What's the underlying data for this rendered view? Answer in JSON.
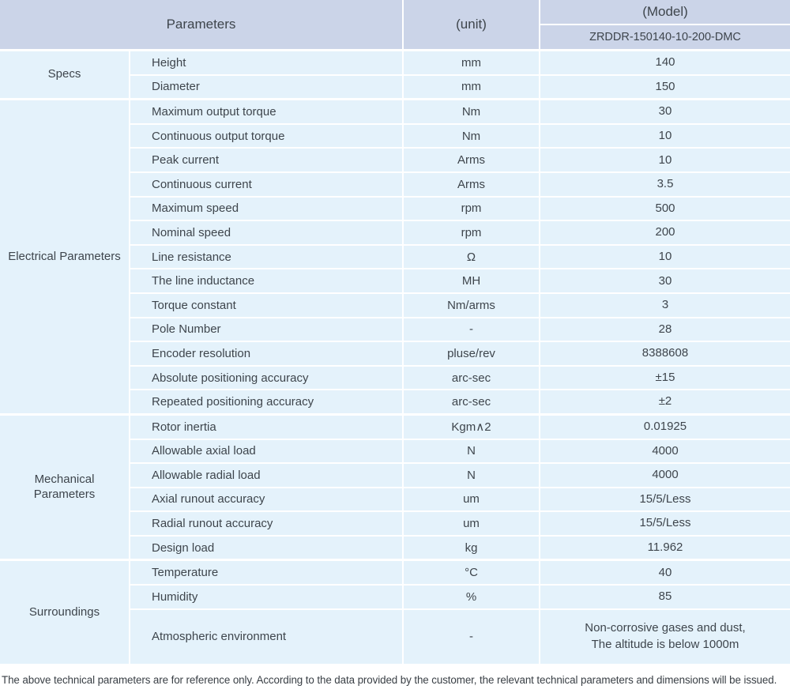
{
  "header": {
    "parameters_label": "Parameters",
    "unit_label": "(unit)",
    "model_label": "(Model)",
    "model_code": "ZRDDR-150140-10-200-DMC"
  },
  "groups": [
    {
      "label": "Specs",
      "rows": [
        {
          "parameter": "Height",
          "unit": "mm",
          "value": "140"
        },
        {
          "parameter": "Diameter",
          "unit": "mm",
          "value": "150"
        }
      ]
    },
    {
      "label": "Electrical Parameters",
      "rows": [
        {
          "parameter": "Maximum output torque",
          "unit": "Nm",
          "value": "30"
        },
        {
          "parameter": "Continuous output torque",
          "unit": "Nm",
          "value": "10"
        },
        {
          "parameter": "Peak current",
          "unit": "Arms",
          "value": "10"
        },
        {
          "parameter": "Continuous current",
          "unit": "Arms",
          "value": "3.5"
        },
        {
          "parameter": "Maximum speed",
          "unit": "rpm",
          "value": "500"
        },
        {
          "parameter": "Nominal speed",
          "unit": "rpm",
          "value": "200"
        },
        {
          "parameter": "Line resistance",
          "unit": "Ω",
          "value": "10"
        },
        {
          "parameter": "The line inductance",
          "unit": "MH",
          "value": "30"
        },
        {
          "parameter": "Torque constant",
          "unit": "Nm/arms",
          "value": "3"
        },
        {
          "parameter": "Pole Number",
          "unit": "-",
          "value": "28"
        },
        {
          "parameter": "Encoder resolution",
          "unit": "pluse/rev",
          "value": "8388608"
        },
        {
          "parameter": "Absolute positioning accuracy",
          "unit": "arc-sec",
          "value": "±15"
        },
        {
          "parameter": "Repeated positioning accuracy",
          "unit": "arc-sec",
          "value": "±2"
        }
      ]
    },
    {
      "label": "Mechanical Parameters",
      "rows": [
        {
          "parameter": "Rotor inertia",
          "unit": "Kgm∧2",
          "value": "0.01925"
        },
        {
          "parameter": "Allowable axial load",
          "unit": "N",
          "value": "4000"
        },
        {
          "parameter": "Allowable radial load",
          "unit": "N",
          "value": "4000"
        },
        {
          "parameter": "Axial runout accuracy",
          "unit": "um",
          "value": "15/5/Less"
        },
        {
          "parameter": "Radial runout accuracy",
          "unit": "um",
          "value": "15/5/Less"
        },
        {
          "parameter": "Design load",
          "unit": "kg",
          "value": "11.962"
        }
      ]
    },
    {
      "label": "Surroundings",
      "rows": [
        {
          "parameter": "Temperature",
          "unit": "°C",
          "value": "40"
        },
        {
          "parameter": "Humidity",
          "unit": "%",
          "value": "85"
        },
        {
          "parameter": "Atmospheric environment",
          "unit": "-",
          "value": "Non-corrosive gases and dust,\nThe altitude is below 1000m"
        }
      ]
    }
  ],
  "footer_note": "The above technical parameters are for reference only. According to the data provided by the customer, the relevant technical parameters and dimensions will be issued.",
  "colors": {
    "header_bg": "#cbd4e8",
    "row_bg": "#e4f2fb",
    "text": "#3e454c",
    "separator": "#ffffff"
  }
}
